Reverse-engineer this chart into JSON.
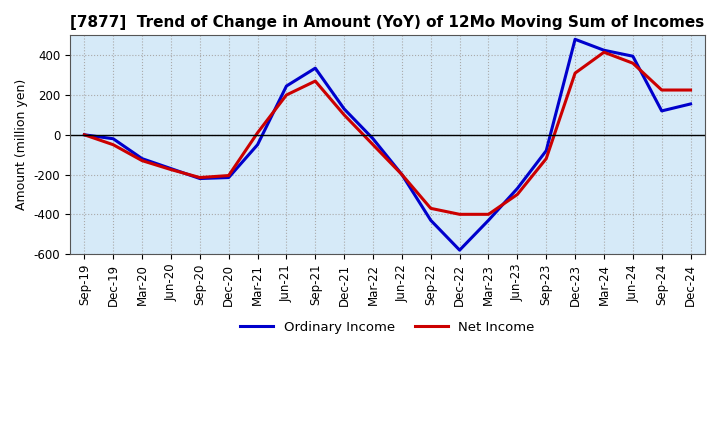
{
  "title": "[7877]  Trend of Change in Amount (YoY) of 12Mo Moving Sum of Incomes",
  "ylabel": "Amount (million yen)",
  "x_labels": [
    "Sep-19",
    "Dec-19",
    "Mar-20",
    "Jun-20",
    "Sep-20",
    "Dec-20",
    "Mar-21",
    "Jun-21",
    "Sep-21",
    "Dec-21",
    "Mar-22",
    "Jun-22",
    "Sep-22",
    "Dec-22",
    "Mar-23",
    "Jun-23",
    "Sep-23",
    "Dec-23",
    "Mar-24",
    "Jun-24",
    "Sep-24",
    "Dec-24"
  ],
  "ordinary_income": [
    0,
    -20,
    -120,
    -170,
    -220,
    -215,
    -50,
    245,
    335,
    130,
    -20,
    -200,
    -430,
    -580,
    -430,
    -270,
    -80,
    480,
    425,
    395,
    120,
    155
  ],
  "net_income": [
    0,
    -50,
    -130,
    -175,
    -215,
    -205,
    10,
    200,
    270,
    100,
    -50,
    -200,
    -370,
    -400,
    -400,
    -300,
    -120,
    310,
    415,
    360,
    225,
    225
  ],
  "ordinary_income_color": "#0000CC",
  "net_income_color": "#CC0000",
  "ylim": [
    -600,
    500
  ],
  "yticks": [
    -600,
    -400,
    -200,
    0,
    200,
    400
  ],
  "plot_bg_color": "#D6EAF8",
  "figure_bg_color": "#FFFFFF",
  "grid_color": "#AAAAAA",
  "legend_labels": [
    "Ordinary Income",
    "Net Income"
  ],
  "line_width": 2.2,
  "title_fontsize": 11,
  "axis_fontsize": 9,
  "tick_fontsize": 8.5
}
